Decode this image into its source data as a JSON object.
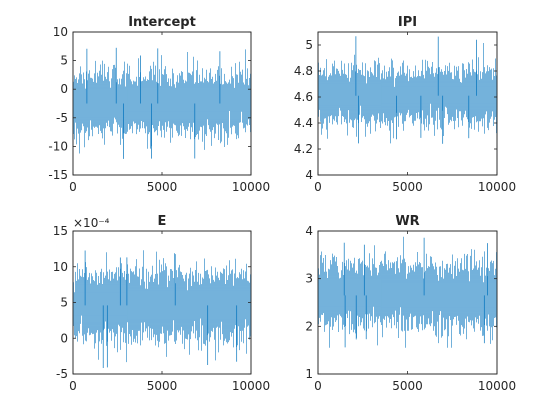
{
  "style": {
    "line_color": "#0072BD",
    "background": "#ffffff",
    "axes_color": "#262626"
  },
  "chart_data": [
    {
      "type": "line",
      "title": "Intercept",
      "xlabel": "",
      "ylabel": "",
      "xlim": [
        0,
        10000
      ],
      "ylim": [
        -15,
        10
      ],
      "xticks": [
        0,
        5000,
        10000
      ],
      "yticks": [
        -15,
        -10,
        -5,
        0,
        5,
        10
      ],
      "exponent_label": "",
      "grid": false,
      "series": [
        {
          "n_samples": 10000,
          "mean": -2.5,
          "sd": 2.5,
          "min": -13.5,
          "max": 7.3
        }
      ]
    },
    {
      "type": "line",
      "title": "IPI",
      "xlabel": "",
      "ylabel": "",
      "xlim": [
        0,
        10000
      ],
      "ylim": [
        4,
        5.1
      ],
      "xticks": [
        0,
        5000,
        10000
      ],
      "yticks": [
        4,
        4.2,
        4.4,
        4.6,
        4.8,
        5
      ],
      "exponent_label": "",
      "grid": false,
      "series": [
        {
          "n_samples": 10000,
          "mean": 4.61,
          "sd": 0.1,
          "min": 4.23,
          "max": 5.1
        }
      ]
    },
    {
      "type": "line",
      "title": "E",
      "xlabel": "",
      "ylabel": "",
      "xlim": [
        0,
        10000
      ],
      "ylim": [
        -5,
        15
      ],
      "xticks": [
        0,
        5000,
        10000
      ],
      "yticks": [
        -5,
        0,
        5,
        10,
        15
      ],
      "exponent_label": "×10⁻⁴",
      "grid": false,
      "series": [
        {
          "n_samples": 10000,
          "mean": 4.6,
          "sd": 2.3,
          "min": -4.5,
          "max": 12.3
        }
      ]
    },
    {
      "type": "line",
      "title": "WR",
      "xlabel": "",
      "ylabel": "",
      "xlim": [
        0,
        10000
      ],
      "ylim": [
        1,
        4
      ],
      "xticks": [
        0,
        5000,
        10000
      ],
      "yticks": [
        1,
        2,
        3,
        4
      ],
      "exponent_label": "",
      "grid": false,
      "series": [
        {
          "n_samples": 10000,
          "mean": 2.65,
          "sd": 0.33,
          "min": 1.55,
          "max": 3.9
        }
      ]
    }
  ]
}
